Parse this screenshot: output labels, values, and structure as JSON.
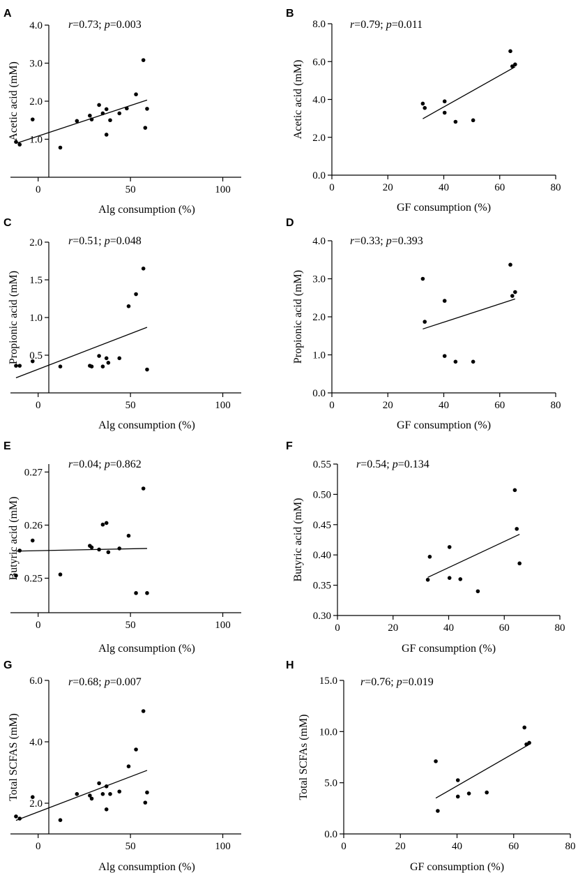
{
  "chart_data": [
    {
      "panel": "A",
      "type": "scatter",
      "stat": {
        "r_label": "r",
        "r_text": "=0.73; ",
        "p_label": "p",
        "p_text": "=0.003"
      },
      "xlabel": "Alg consumption (%)",
      "ylabel": "Acetic acid (mM)",
      "xlim": [
        -15,
        110
      ],
      "ylim": [
        0.0,
        4.0
      ],
      "xticks": [
        0,
        50,
        100
      ],
      "xtick_labels": [
        "0",
        "50",
        "100"
      ],
      "yticks": [
        1.0,
        2.0,
        3.0,
        4.0
      ],
      "ytick_labels": [
        "1.0",
        "2.0",
        "3.0",
        "4.0"
      ],
      "points": [
        [
          -12,
          0.93
        ],
        [
          -10,
          0.86
        ],
        [
          -3,
          1.52
        ],
        [
          12,
          0.78
        ],
        [
          21,
          1.48
        ],
        [
          28,
          1.62
        ],
        [
          29,
          1.52
        ],
        [
          33,
          1.9
        ],
        [
          35,
          1.68
        ],
        [
          37,
          1.79
        ],
        [
          37,
          1.12
        ],
        [
          39,
          1.5
        ],
        [
          44,
          1.68
        ],
        [
          48,
          1.81
        ],
        [
          53,
          2.18
        ],
        [
          57,
          3.08
        ],
        [
          58,
          1.3
        ],
        [
          59,
          1.8
        ]
      ],
      "fit": [
        [
          -12,
          0.89
        ],
        [
          59,
          2.03
        ]
      ]
    },
    {
      "panel": "B",
      "type": "scatter",
      "stat": {
        "r_label": "r",
        "r_text": "=0.79; ",
        "p_label": "p",
        "p_text": "=0.011"
      },
      "xlabel": "GF consumption (%)",
      "ylabel": "Acetic acid (mM)",
      "xlim": [
        0,
        80
      ],
      "ylim": [
        0.0,
        8.0
      ],
      "xticks": [
        0,
        20,
        40,
        60,
        80
      ],
      "xtick_labels": [
        "0",
        "20",
        "40",
        "60",
        "80"
      ],
      "yticks": [
        0.0,
        2.0,
        4.0,
        6.0,
        8.0
      ],
      "ytick_labels": [
        "0.0",
        "2.0",
        "4.0",
        "6.0",
        "8.0"
      ],
      "points": [
        [
          32.5,
          3.78
        ],
        [
          33.2,
          3.55
        ],
        [
          40.3,
          3.9
        ],
        [
          40.3,
          3.3
        ],
        [
          44.2,
          2.82
        ],
        [
          50.5,
          2.9
        ],
        [
          63.8,
          6.55
        ],
        [
          64.5,
          5.75
        ],
        [
          65.5,
          5.85
        ]
      ],
      "fit": [
        [
          32.5,
          2.98
        ],
        [
          65.5,
          5.72
        ]
      ]
    },
    {
      "panel": "C",
      "type": "scatter",
      "stat": {
        "r_label": "r",
        "r_text": "=0.51; ",
        "p_label": "p",
        "p_text": "=0.048"
      },
      "xlabel": "Alg consumption (%)",
      "ylabel": "Propionic acid (mM)",
      "xlim": [
        -15,
        110
      ],
      "ylim": [
        0.0,
        2.0
      ],
      "xticks": [
        0,
        50,
        100
      ],
      "xtick_labels": [
        "0",
        "50",
        "100"
      ],
      "yticks": [
        0.5,
        1.0,
        1.5,
        2.0
      ],
      "ytick_labels": [
        "0.5",
        "1.0",
        "1.5",
        "2.0"
      ],
      "points": [
        [
          -12,
          0.36
        ],
        [
          -10,
          0.36
        ],
        [
          -3,
          0.42
        ],
        [
          12,
          0.35
        ],
        [
          28,
          0.36
        ],
        [
          29,
          0.35
        ],
        [
          33,
          0.49
        ],
        [
          35,
          0.35
        ],
        [
          37,
          0.46
        ],
        [
          38,
          0.4
        ],
        [
          44,
          0.46
        ],
        [
          49,
          1.15
        ],
        [
          53,
          1.31
        ],
        [
          57,
          1.65
        ],
        [
          59,
          0.31
        ]
      ],
      "fit": [
        [
          -12,
          0.2
        ],
        [
          59,
          0.87
        ]
      ]
    },
    {
      "panel": "D",
      "type": "scatter",
      "stat": {
        "r_label": "r",
        "r_text": "=0.33; ",
        "p_label": "p",
        "p_text": "=0.393"
      },
      "xlabel": "GF consumption (%)",
      "ylabel": "Propionic acid (mM)",
      "xlim": [
        0,
        80
      ],
      "ylim": [
        0.0,
        4.0
      ],
      "xticks": [
        0,
        20,
        40,
        60,
        80
      ],
      "xtick_labels": [
        "0",
        "20",
        "40",
        "60",
        "80"
      ],
      "yticks": [
        0.0,
        1.0,
        2.0,
        3.0,
        4.0
      ],
      "ytick_labels": [
        "0.0",
        "1.0",
        "2.0",
        "3.0",
        "4.0"
      ],
      "points": [
        [
          32.5,
          3.0
        ],
        [
          33.2,
          1.87
        ],
        [
          40.3,
          2.42
        ],
        [
          40.3,
          0.97
        ],
        [
          44.2,
          0.82
        ],
        [
          50.5,
          0.82
        ],
        [
          63.8,
          3.37
        ],
        [
          64.5,
          2.55
        ],
        [
          65.5,
          2.65
        ]
      ],
      "fit": [
        [
          32.5,
          1.68
        ],
        [
          65.5,
          2.47
        ]
      ]
    },
    {
      "panel": "E",
      "type": "scatter",
      "stat": {
        "r_label": "r",
        "r_text": "=0.04; ",
        "p_label": "p",
        "p_text": "=0.862"
      },
      "xlabel": "Alg consumption (%)",
      "ylabel": "Butyric acid (mM)",
      "xlim": [
        -15,
        110
      ],
      "ylim": [
        0.2435,
        0.2715
      ],
      "xticks": [
        0,
        50,
        100
      ],
      "xtick_labels": [
        "0",
        "50",
        "100"
      ],
      "yticks": [
        0.25,
        0.26,
        0.27
      ],
      "ytick_labels": [
        "0.25",
        "0.26",
        "0.27"
      ],
      "points": [
        [
          -12,
          0.2505
        ],
        [
          -10,
          0.2552
        ],
        [
          -3,
          0.2571
        ],
        [
          12,
          0.2507
        ],
        [
          28,
          0.2561
        ],
        [
          29,
          0.2558
        ],
        [
          33,
          0.2554
        ],
        [
          35,
          0.2601
        ],
        [
          37,
          0.2604
        ],
        [
          38,
          0.2549
        ],
        [
          44,
          0.2556
        ],
        [
          49,
          0.258
        ],
        [
          53,
          0.2472
        ],
        [
          57,
          0.2669
        ],
        [
          59,
          0.2472
        ]
      ],
      "fit": [
        [
          -12,
          0.2551
        ],
        [
          59,
          0.2556
        ]
      ]
    },
    {
      "panel": "F",
      "type": "scatter",
      "stat": {
        "r_label": "r",
        "r_text": "=0.54; ",
        "p_label": "p",
        "p_text": "=0.134"
      },
      "xlabel": "GF consumption (%)",
      "ylabel": "Butyric acid (mM)",
      "xlim": [
        0,
        80
      ],
      "ylim": [
        0.3,
        0.55
      ],
      "xticks": [
        0,
        20,
        40,
        60,
        80
      ],
      "xtick_labels": [
        "0",
        "20",
        "40",
        "60",
        "80"
      ],
      "yticks": [
        0.3,
        0.35,
        0.4,
        0.45,
        0.5,
        0.55
      ],
      "ytick_labels": [
        "0.30",
        "0.35",
        "0.40",
        "0.45",
        "0.50",
        "0.55"
      ],
      "points": [
        [
          32.5,
          0.359
        ],
        [
          33.2,
          0.397
        ],
        [
          40.3,
          0.413
        ],
        [
          40.3,
          0.362
        ],
        [
          44.2,
          0.36
        ],
        [
          50.5,
          0.34
        ],
        [
          63.8,
          0.507
        ],
        [
          64.5,
          0.443
        ],
        [
          65.5,
          0.386
        ]
      ],
      "fit": [
        [
          32.5,
          0.363
        ],
        [
          65.5,
          0.434
        ]
      ]
    },
    {
      "panel": "G",
      "type": "scatter",
      "stat": {
        "r_label": "r",
        "r_text": "=0.68; ",
        "p_label": "p",
        "p_text": "=0.007"
      },
      "xlabel": "Alg consumption (%)",
      "ylabel": "Total SCFAS (mM)",
      "xlim": [
        -15,
        110
      ],
      "ylim": [
        1.0,
        6.0
      ],
      "xticks": [
        0,
        50,
        100
      ],
      "xtick_labels": [
        "0",
        "50",
        "100"
      ],
      "yticks": [
        2.0,
        4.0,
        6.0
      ],
      "ytick_labels": [
        "2.0",
        "4.0",
        "6.0"
      ],
      "points": [
        [
          -12,
          1.57
        ],
        [
          -10,
          1.5
        ],
        [
          -3,
          2.2
        ],
        [
          12,
          1.45
        ],
        [
          21,
          2.3
        ],
        [
          28,
          2.25
        ],
        [
          29,
          2.15
        ],
        [
          33,
          2.65
        ],
        [
          35,
          2.3
        ],
        [
          37,
          2.55
        ],
        [
          37,
          1.8
        ],
        [
          39,
          2.3
        ],
        [
          44,
          2.38
        ],
        [
          49,
          3.2
        ],
        [
          53,
          3.75
        ],
        [
          57,
          5.0
        ],
        [
          58,
          2.02
        ],
        [
          59,
          2.35
        ]
      ],
      "fit": [
        [
          -12,
          1.44
        ],
        [
          59,
          3.07
        ]
      ]
    },
    {
      "panel": "H",
      "type": "scatter",
      "stat": {
        "r_label": "r",
        "r_text": "=0.76; ",
        "p_label": "p",
        "p_text": "=0.019"
      },
      "xlabel": "GF consumption (%)",
      "ylabel": "Total SCFAs (mM)",
      "xlim": [
        0,
        80
      ],
      "ylim": [
        0.0,
        15.0
      ],
      "xticks": [
        0,
        20,
        40,
        60,
        80
      ],
      "xtick_labels": [
        "0",
        "20",
        "40",
        "60",
        "80"
      ],
      "yticks": [
        0.0,
        5.0,
        10.0,
        15.0
      ],
      "ytick_labels": [
        "0.0",
        "5.0",
        "10.0",
        "15.0"
      ],
      "points": [
        [
          32.5,
          7.1
        ],
        [
          33.2,
          2.25
        ],
        [
          40.3,
          5.25
        ],
        [
          40.3,
          3.65
        ],
        [
          44.2,
          3.95
        ],
        [
          50.5,
          4.05
        ],
        [
          63.8,
          10.4
        ],
        [
          64.5,
          8.75
        ],
        [
          65.5,
          8.9
        ]
      ],
      "fit": [
        [
          32.5,
          3.5
        ],
        [
          65.5,
          8.75
        ]
      ]
    }
  ]
}
